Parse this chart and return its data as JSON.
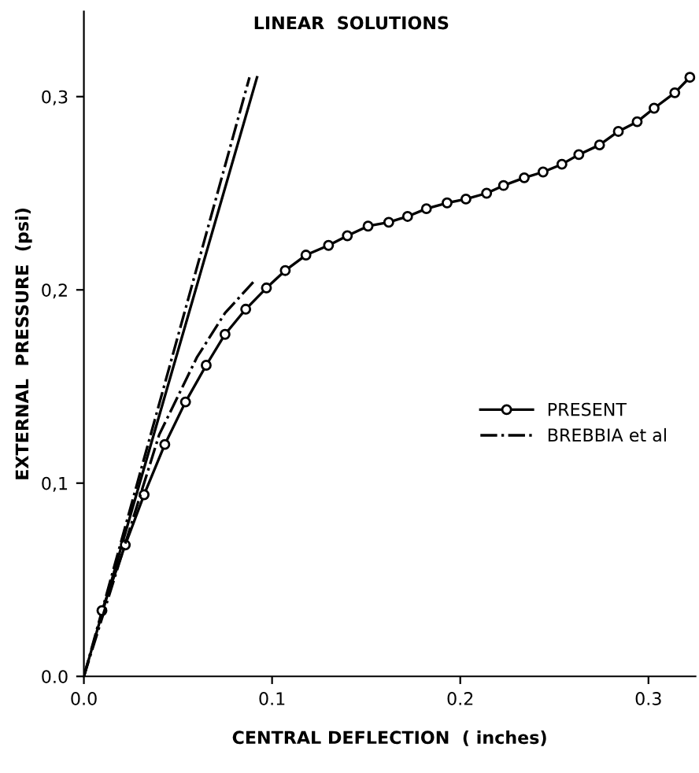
{
  "chart_data": {
    "type": "line",
    "xlabel": "CENTRAL DEFLECTION  ( inches)",
    "ylabel": "EXTERNAL  PRESSURE  (psi)",
    "annotations": [
      {
        "text": "LINEAR  SOLUTIONS",
        "x": 0.09,
        "y": 0.31
      }
    ],
    "xlim": [
      0,
      0.325
    ],
    "ylim": [
      0,
      0.344
    ],
    "xticks": [
      {
        "value": 0,
        "label": "0.0"
      },
      {
        "value": 0.1,
        "label": "0.1"
      },
      {
        "value": 0.2,
        "label": "0.2"
      },
      {
        "value": 0.3,
        "label": "0.3"
      }
    ],
    "yticks": [
      {
        "value": 0,
        "label": "0.0"
      },
      {
        "value": 0.1,
        "label": "0,1"
      },
      {
        "value": 0.2,
        "label": "0,2"
      },
      {
        "value": 0.3,
        "label": "0,3"
      }
    ],
    "grid": false,
    "legend": "right",
    "series": [
      {
        "color": "#000000",
        "line_style": "solid",
        "x": [
          0,
          0.092
        ],
        "values": [
          0,
          0.31
        ]
      },
      {
        "color": "#000000",
        "line_style": "dashdot",
        "x": [
          0,
          0.088
        ],
        "values": [
          0,
          0.31
        ]
      },
      {
        "name": "PRESENT",
        "color": "#000000",
        "line_style": "solid",
        "marker": "circle",
        "x": [
          0.0096,
          0.022,
          0.032,
          0.043,
          0.054,
          0.065,
          0.075,
          0.086,
          0.097,
          0.107,
          0.118,
          0.13,
          0.14,
          0.151,
          0.162,
          0.172,
          0.182,
          0.193,
          0.203,
          0.214,
          0.223,
          0.234,
          0.244,
          0.254,
          0.263,
          0.274,
          0.284,
          0.294,
          0.303,
          0.314,
          0.322
        ],
        "values": [
          0.034,
          0.068,
          0.094,
          0.12,
          0.142,
          0.161,
          0.177,
          0.19,
          0.201,
          0.21,
          0.218,
          0.223,
          0.228,
          0.233,
          0.235,
          0.238,
          0.242,
          0.245,
          0.247,
          0.25,
          0.254,
          0.258,
          0.261,
          0.265,
          0.27,
          0.275,
          0.282,
          0.287,
          0.294,
          0.302,
          0.31
        ]
      },
      {
        "name": "BREBBIA et al",
        "color": "#000000",
        "line_style": "dashdot",
        "x": [
          0,
          0.04,
          0.06,
          0.075,
          0.09
        ],
        "values": [
          0,
          0.125,
          0.165,
          0.188,
          0.204
        ]
      }
    ]
  }
}
